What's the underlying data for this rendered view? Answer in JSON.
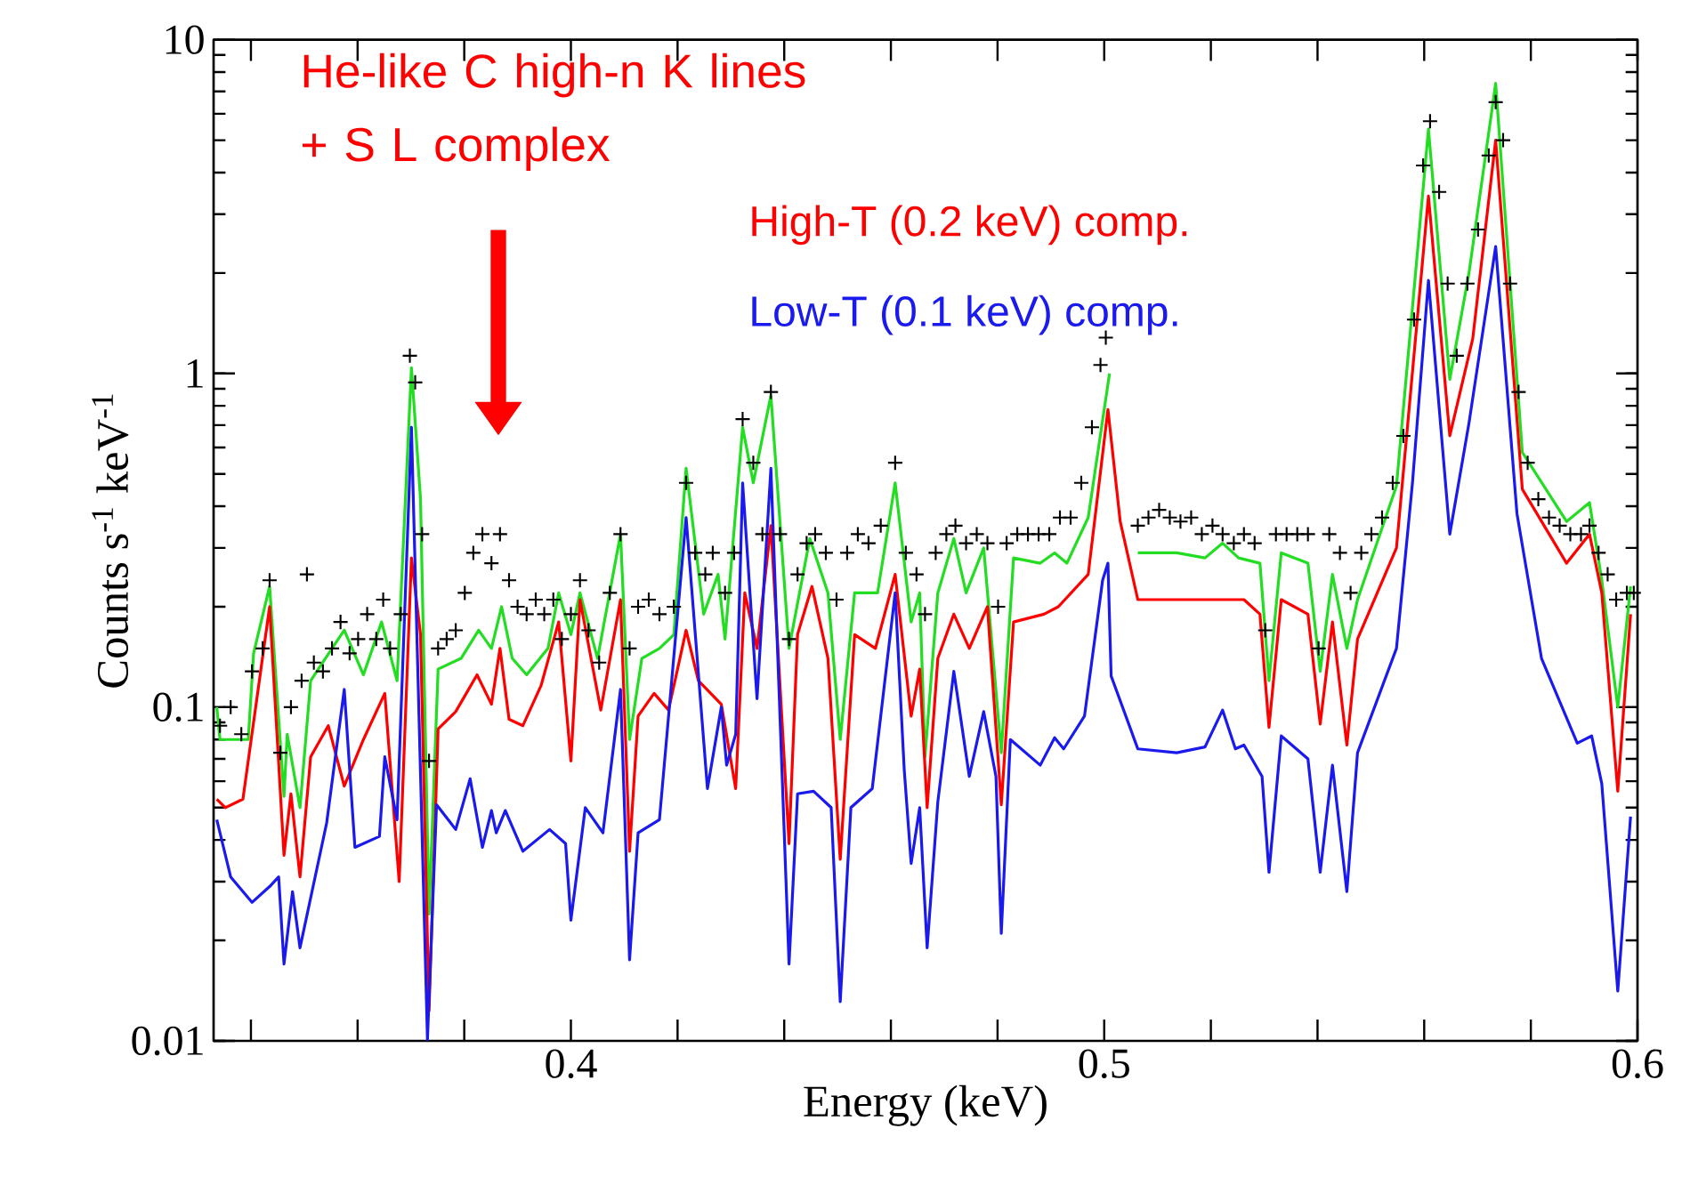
{
  "chart_data": {
    "type": "line",
    "xlabel": "Energy (keV)",
    "ylabel": "Counts s$^{-1}$ keV$^{-1}$",
    "log": "y",
    "xlim": [
      0.333,
      0.6
    ],
    "ylim": [
      0.01,
      10
    ],
    "xticks": [
      {
        "value": 0.34,
        "label": null
      },
      {
        "value": 0.36,
        "label": null
      },
      {
        "value": 0.38,
        "label": null
      },
      0.4,
      {
        "value": 0.42,
        "label": null
      },
      {
        "value": 0.44,
        "label": null
      },
      {
        "value": 0.46,
        "label": null
      },
      {
        "value": 0.48,
        "label": null
      },
      0.5,
      {
        "value": 0.52,
        "label": null
      },
      {
        "value": 0.54,
        "label": null
      },
      {
        "value": 0.56,
        "label": null
      },
      {
        "value": 0.58,
        "label": null
      },
      0.6
    ],
    "yticks": [
      0.01,
      0.1,
      1,
      10
    ],
    "annotations": [
      "He-like C high-n K lines + S L complex"
    ],
    "series": [
      {
        "type": "scatter",
        "marker": "cross",
        "color": "#000000",
        "x": [
          0.3342,
          0.3362,
          0.3382,
          0.3402,
          0.3422,
          0.3435,
          0.3455,
          0.3475,
          0.3495,
          0.3505,
          0.3518,
          0.3535,
          0.3552,
          0.3568,
          0.3585,
          0.3601,
          0.3618,
          0.3635,
          0.3648,
          0.3661,
          0.3681,
          0.3698,
          0.3708,
          0.3721,
          0.3734,
          0.3751,
          0.3767,
          0.3784,
          0.3801,
          0.3817,
          0.3834,
          0.3851,
          0.3867,
          0.3884,
          0.39,
          0.3917,
          0.3934,
          0.395,
          0.3967,
          0.3983,
          0.4,
          0.4017,
          0.4033,
          0.4053,
          0.4073,
          0.4093,
          0.411,
          0.4126,
          0.4146,
          0.4166,
          0.4193,
          0.4216,
          0.4233,
          0.4252,
          0.4266,
          0.4289,
          0.4306,
          0.4322,
          0.4342,
          0.4359,
          0.4375,
          0.4392,
          0.4409,
          0.4425,
          0.4442,
          0.4458,
          0.4478,
          0.4498,
          0.4518,
          0.4538,
          0.4558,
          0.4581,
          0.4608,
          0.4628,
          0.4648,
          0.4664,
          0.4684,
          0.4704,
          0.4721,
          0.4741,
          0.4761,
          0.4781,
          0.4801,
          0.4817,
          0.4837,
          0.4857,
          0.4877,
          0.4897,
          0.4917,
          0.4937,
          0.4957,
          0.4977,
          0.4993,
          0.5003,
          0.5063,
          0.5083,
          0.5103,
          0.5123,
          0.5143,
          0.5163,
          0.5183,
          0.5203,
          0.5222,
          0.5243,
          0.5262,
          0.5282,
          0.5302,
          0.5322,
          0.5342,
          0.5362,
          0.5382,
          0.5402,
          0.5422,
          0.5442,
          0.5462,
          0.5482,
          0.5501,
          0.5521,
          0.5541,
          0.5561,
          0.5581,
          0.5598,
          0.5611,
          0.5628,
          0.5644,
          0.5661,
          0.5681,
          0.5701,
          0.5721,
          0.5734,
          0.5748,
          0.5761,
          0.5777,
          0.5794,
          0.5814,
          0.5834,
          0.5854,
          0.5874,
          0.5894,
          0.591,
          0.5927,
          0.5944,
          0.596,
          0.598,
          0.5993
        ],
        "values": [
          0.088,
          0.1,
          0.083,
          0.128,
          0.15,
          0.24,
          0.073,
          0.1,
          0.12,
          0.25,
          0.136,
          0.128,
          0.15,
          0.18,
          0.145,
          0.16,
          0.19,
          0.16,
          0.21,
          0.15,
          0.19,
          1.13,
          0.94,
          0.33,
          0.069,
          0.15,
          0.16,
          0.17,
          0.22,
          0.29,
          0.33,
          0.27,
          0.33,
          0.24,
          0.2,
          0.19,
          0.21,
          0.19,
          0.21,
          0.16,
          0.19,
          0.24,
          0.17,
          0.136,
          0.22,
          0.33,
          0.15,
          0.2,
          0.21,
          0.19,
          0.2,
          0.47,
          0.29,
          0.25,
          0.29,
          0.22,
          0.29,
          0.73,
          0.54,
          0.33,
          0.88,
          0.33,
          0.16,
          0.25,
          0.31,
          0.33,
          0.29,
          0.21,
          0.29,
          0.33,
          0.31,
          0.35,
          0.54,
          0.29,
          0.25,
          0.19,
          0.29,
          0.33,
          0.35,
          0.31,
          0.33,
          0.31,
          0.2,
          0.31,
          0.33,
          0.33,
          0.33,
          0.33,
          0.37,
          0.37,
          0.47,
          0.69,
          1.06,
          1.28,
          0.35,
          0.37,
          0.39,
          0.37,
          0.36,
          0.37,
          0.33,
          0.35,
          0.33,
          0.31,
          0.33,
          0.31,
          0.17,
          0.33,
          0.33,
          0.33,
          0.33,
          0.15,
          0.33,
          0.29,
          0.22,
          0.29,
          0.33,
          0.37,
          0.47,
          0.65,
          1.45,
          4.2,
          5.7,
          3.5,
          1.86,
          1.13,
          1.86,
          2.7,
          4.5,
          6.5,
          5.0,
          1.86,
          0.88,
          0.54,
          0.42,
          0.37,
          0.35,
          0.33,
          0.33,
          0.35,
          0.29,
          0.25,
          0.21,
          0.22,
          0.22
        ]
      },
      {
        "type": "line",
        "color": "#22dd22",
        "x": [
          0.3336,
          0.3342,
          0.3395,
          0.3405,
          0.3435,
          0.3462,
          0.3468,
          0.3492,
          0.3512,
          0.3552,
          0.3575,
          0.3611,
          0.3645,
          0.3674,
          0.3701,
          0.3718,
          0.3734,
          0.3751,
          0.3794,
          0.3827,
          0.3851,
          0.387,
          0.389,
          0.3917,
          0.3957,
          0.3977,
          0.4,
          0.4017,
          0.405,
          0.4093,
          0.411,
          0.4133,
          0.4166,
          0.4193,
          0.4216,
          0.4249,
          0.4276,
          0.4289,
          0.4322,
          0.4342,
          0.4375,
          0.4409,
          0.4448,
          0.4482,
          0.4505,
          0.4532,
          0.4575,
          0.4608,
          0.4638,
          0.4654,
          0.4664,
          0.4688,
          0.4718,
          0.4741,
          0.4774,
          0.4807,
          0.483,
          0.488,
          0.4907,
          0.493,
          0.497,
          0.501,
          0.503,
          0.5063,
          0.5136,
          0.5189,
          0.5222,
          0.5252,
          0.5292,
          0.5309,
          0.5332,
          0.5382,
          0.5405,
          0.5428,
          0.5455,
          0.5475,
          0.5548,
          0.5608,
          0.5648,
          0.5684,
          0.5734,
          0.5784,
          0.5867,
          0.591,
          0.5933,
          0.5963,
          0.5987
        ],
        "values": [
          0.1,
          0.08,
          0.08,
          0.145,
          0.23,
          0.054,
          0.083,
          0.05,
          0.12,
          0.15,
          0.17,
          0.125,
          0.18,
          0.12,
          1.04,
          0.42,
          0.024,
          0.13,
          0.14,
          0.17,
          0.15,
          0.2,
          0.14,
          0.125,
          0.15,
          0.22,
          0.165,
          0.22,
          0.14,
          0.33,
          0.08,
          0.14,
          0.15,
          0.165,
          0.52,
          0.19,
          0.25,
          0.16,
          0.69,
          0.47,
          0.86,
          0.15,
          0.32,
          0.22,
          0.08,
          0.22,
          0.22,
          0.47,
          0.18,
          0.22,
          0.071,
          0.22,
          0.32,
          0.22,
          0.3,
          0.073,
          0.28,
          0.27,
          0.29,
          0.27,
          0.37,
          1.0,
          null,
          0.29,
          0.29,
          0.28,
          0.31,
          0.28,
          0.27,
          0.12,
          0.29,
          0.27,
          0.128,
          0.25,
          0.15,
          0.21,
          0.46,
          5.4,
          0.96,
          2.0,
          7.4,
          0.58,
          0.36,
          0.41,
          0.24,
          0.1,
          0.23
        ]
      },
      {
        "type": "line",
        "name": "High-T (0.2 keV) comp.",
        "color": "#ff0000",
        "x": [
          0.3336,
          0.3352,
          0.3385,
          0.3435,
          0.3462,
          0.3475,
          0.3492,
          0.3512,
          0.3545,
          0.3575,
          0.3611,
          0.3651,
          0.3678,
          0.3701,
          0.3718,
          0.3734,
          0.3751,
          0.3784,
          0.3824,
          0.3851,
          0.3867,
          0.3884,
          0.391,
          0.3944,
          0.3977,
          0.4,
          0.4017,
          0.4056,
          0.4093,
          0.411,
          0.4126,
          0.4156,
          0.4183,
          0.4216,
          0.4239,
          0.4282,
          0.4309,
          0.4326,
          0.4349,
          0.4375,
          0.4409,
          0.4425,
          0.4452,
          0.4482,
          0.4505,
          0.4532,
          0.4571,
          0.4608,
          0.4638,
          0.4654,
          0.4668,
          0.4688,
          0.4718,
          0.4747,
          0.4781,
          0.4807,
          0.483,
          0.4887,
          0.4914,
          0.497,
          0.5007,
          0.503,
          0.5063,
          0.5146,
          0.5219,
          0.5262,
          0.5292,
          0.5309,
          0.5332,
          0.5382,
          0.5405,
          0.5428,
          0.5455,
          0.5475,
          0.5548,
          0.5608,
          0.5648,
          0.5691,
          0.5734,
          0.5784,
          0.5867,
          0.591,
          0.5933,
          0.5963,
          0.5987
        ],
        "values": [
          0.053,
          0.05,
          0.053,
          0.2,
          0.036,
          0.055,
          0.031,
          0.071,
          0.088,
          0.058,
          0.08,
          0.11,
          0.03,
          0.28,
          0.165,
          0.0123,
          0.086,
          0.097,
          0.125,
          0.102,
          0.15,
          0.092,
          0.088,
          0.116,
          0.18,
          0.069,
          0.21,
          0.098,
          0.21,
          0.037,
          0.094,
          0.11,
          0.098,
          0.17,
          0.12,
          0.102,
          0.057,
          0.22,
          0.15,
          0.35,
          0.039,
          0.165,
          0.23,
          0.14,
          0.035,
          0.165,
          0.15,
          0.25,
          0.094,
          0.13,
          0.05,
          0.14,
          0.19,
          0.15,
          0.2,
          0.051,
          0.18,
          0.19,
          0.2,
          0.25,
          0.78,
          0.36,
          0.21,
          0.21,
          0.21,
          0.21,
          0.19,
          0.087,
          0.21,
          0.19,
          0.089,
          0.18,
          0.077,
          0.16,
          0.3,
          3.4,
          0.65,
          1.27,
          5.0,
          0.45,
          0.27,
          0.33,
          0.22,
          0.056,
          0.19
        ]
      },
      {
        "type": "line",
        "name": "Low-T (0.1 keV) comp.",
        "color": "#1a1aee",
        "x": [
          0.3336,
          0.3362,
          0.3402,
          0.3435,
          0.3452,
          0.3462,
          0.3478,
          0.3492,
          0.3542,
          0.3575,
          0.3595,
          0.3641,
          0.3651,
          0.3674,
          0.3701,
          0.3731,
          0.3748,
          0.3784,
          0.3811,
          0.3834,
          0.3851,
          0.386,
          0.3877,
          0.391,
          0.396,
          0.399,
          0.4,
          0.4027,
          0.406,
          0.4093,
          0.411,
          0.4126,
          0.4166,
          0.4216,
          0.4256,
          0.4282,
          0.4292,
          0.4309,
          0.4322,
          0.4349,
          0.4375,
          0.4409,
          0.4425,
          0.4455,
          0.4488,
          0.4505,
          0.4525,
          0.4565,
          0.4608,
          0.4625,
          0.4638,
          0.4654,
          0.4668,
          0.4688,
          0.4718,
          0.4747,
          0.4774,
          0.4797,
          0.4807,
          0.4824,
          0.488,
          0.4907,
          0.4924,
          0.4963,
          0.4997,
          0.5007,
          0.5013,
          0.5063,
          0.5136,
          0.5189,
          0.5222,
          0.5246,
          0.5262,
          0.5296,
          0.5309,
          0.5332,
          0.5382,
          0.5405,
          0.5428,
          0.5455,
          0.5475,
          0.5548,
          0.5578,
          0.5608,
          0.5648,
          0.5684,
          0.5734,
          0.5774,
          0.582,
          0.5887,
          0.5914,
          0.5933,
          0.5963,
          0.5987
        ],
        "values": [
          0.046,
          0.031,
          0.026,
          0.029,
          0.031,
          0.017,
          0.028,
          0.019,
          0.045,
          0.113,
          0.038,
          0.041,
          0.071,
          0.046,
          0.69,
          0.0101,
          0.051,
          0.043,
          0.061,
          0.038,
          0.049,
          0.042,
          0.049,
          0.037,
          0.043,
          0.039,
          0.023,
          0.05,
          0.042,
          0.113,
          0.0175,
          0.042,
          0.046,
          0.37,
          0.057,
          0.1,
          0.067,
          0.083,
          0.47,
          0.106,
          0.52,
          0.017,
          0.055,
          0.056,
          0.05,
          0.0131,
          0.05,
          0.057,
          0.22,
          0.065,
          0.034,
          0.05,
          0.019,
          0.052,
          0.128,
          0.062,
          0.097,
          0.062,
          0.021,
          0.08,
          0.067,
          0.081,
          0.075,
          0.094,
          0.24,
          0.27,
          0.124,
          0.075,
          0.073,
          0.076,
          0.098,
          0.075,
          0.077,
          0.062,
          0.032,
          0.082,
          0.07,
          0.032,
          0.067,
          0.028,
          0.073,
          0.15,
          0.47,
          1.9,
          0.33,
          0.71,
          2.4,
          0.38,
          0.14,
          0.078,
          0.082,
          0.059,
          0.0141,
          0.047
        ]
      }
    ]
  }
}
